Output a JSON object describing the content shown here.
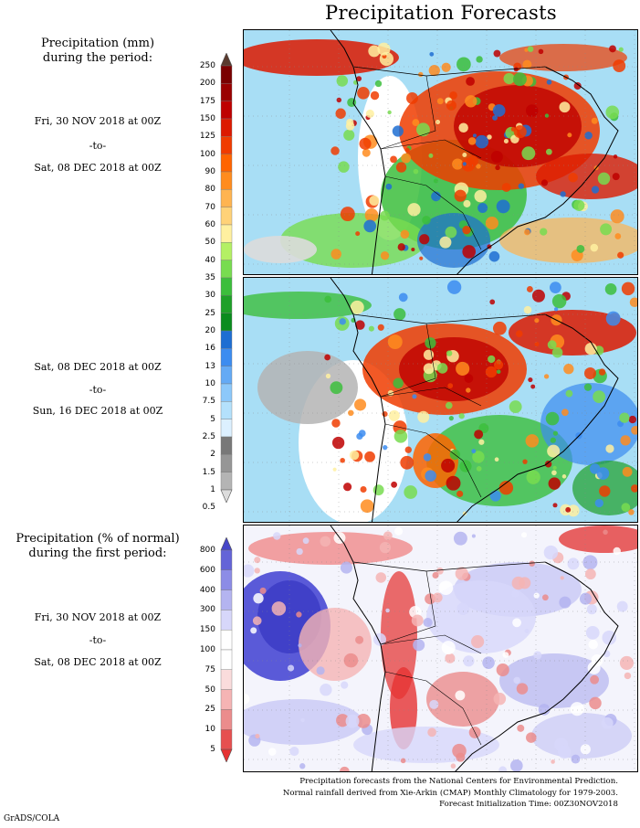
{
  "title": "Precipitation Forecasts",
  "section1": {
    "heading_line1": "Precipitation (mm)",
    "heading_line2": "during the period:",
    "period1": {
      "start": "Fri, 30 NOV 2018 at 00Z",
      "sep": "-to-",
      "end": "Sat, 08 DEC 2018 at 00Z"
    },
    "period2": {
      "start": "Sat, 08 DEC 2018 at 00Z",
      "sep": "-to-",
      "end": "Sun, 16 DEC 2018 at 00Z"
    },
    "legend_levels": [
      "250",
      "200",
      "175",
      "150",
      "125",
      "100",
      "90",
      "80",
      "70",
      "60",
      "50",
      "40",
      "35",
      "30",
      "25",
      "20",
      "16",
      "13",
      "10",
      "7.5",
      "5",
      "2.5",
      "2",
      "1.5",
      "1",
      "0.5"
    ],
    "legend_colors": [
      "#5a3a2e",
      "#7a0000",
      "#9a0000",
      "#be0000",
      "#dc1a00",
      "#f03c00",
      "#ff6400",
      "#ff8c1e",
      "#ffb450",
      "#ffd278",
      "#fff0a0",
      "#b4f064",
      "#78dc50",
      "#3cbe3c",
      "#1ea028",
      "#0a8c1e",
      "#1e6ed2",
      "#3c8cf0",
      "#64aaf5",
      "#8cc8fa",
      "#b4e1fc",
      "#dcf0ff",
      "#787878",
      "#969696",
      "#b4b4b4",
      "#dcdcdc"
    ]
  },
  "section2": {
    "heading_line1": "Precipitation (% of normal)",
    "heading_line2": "during the first period:",
    "period": {
      "start": "Fri, 30 NOV 2018 at 00Z",
      "sep": "-to-",
      "end": "Sat, 08 DEC 2018 at 00Z"
    },
    "legend_levels": [
      "800",
      "600",
      "400",
      "300",
      "150",
      "100",
      "75",
      "50",
      "25",
      "10",
      "5"
    ],
    "legend_colors": [
      "#4646c8",
      "#6464d7",
      "#8c8ce6",
      "#b4b4f0",
      "#d7d7fa",
      "#ffffff",
      "#ffffff",
      "#fadcdc",
      "#f5b4b4",
      "#eb8c8c",
      "#e65050",
      "#e63232"
    ]
  },
  "footer": {
    "line1": "Precipitation forecasts from the National Centers for Environmental Prediction.",
    "line2": "Normal rainfall derived from Xie-Arkin (CMAP) Monthly Climatology for 1979-2003.",
    "line3": "Forecast Initialization Time: 00Z30NOV2018"
  },
  "credit": "GrADS/COLA",
  "colors": {
    "ocean_light": "#a8def5",
    "rain_heavy": "#e02000",
    "dry_gray": "#9a9a9a",
    "above_normal": "#6a6ae0",
    "below_normal": "#e85050"
  }
}
